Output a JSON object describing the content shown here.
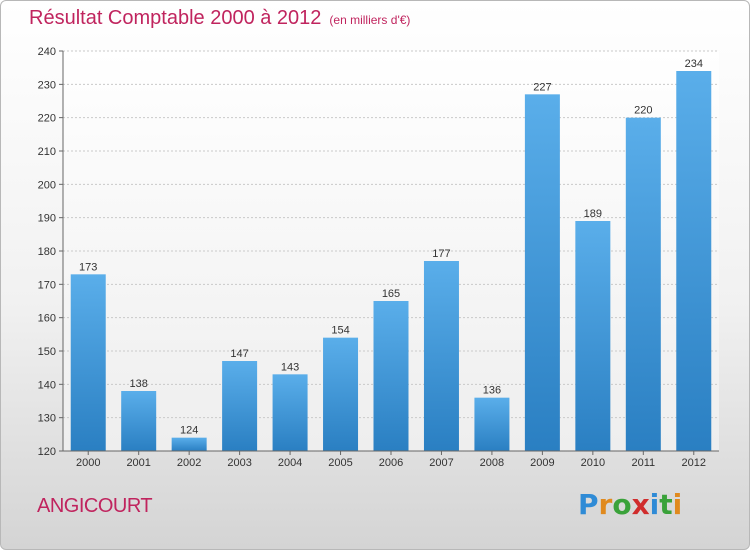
{
  "header": {
    "title": "Résultat Comptable 2000 à 2012",
    "subtitle": "(en milliers d'€)"
  },
  "footer": {
    "town": "ANGICOURT",
    "logo": "Proxiti"
  },
  "colors": {
    "title": "#c0245e",
    "bar_top": "#5aaeea",
    "bar_bottom": "#2a7fc2",
    "grid": "#c9c9c9"
  },
  "chart_data": {
    "type": "bar",
    "categories": [
      "2000",
      "2001",
      "2002",
      "2003",
      "2004",
      "2005",
      "2006",
      "2007",
      "2008",
      "2009",
      "2010",
      "2011",
      "2012"
    ],
    "values": [
      173,
      138,
      124,
      147,
      143,
      154,
      165,
      177,
      136,
      227,
      189,
      220,
      234
    ],
    "ylim": [
      120,
      240
    ],
    "yticks": [
      120,
      130,
      140,
      150,
      160,
      170,
      180,
      190,
      200,
      210,
      220,
      230,
      240
    ],
    "grid": true,
    "data_labels": true
  }
}
